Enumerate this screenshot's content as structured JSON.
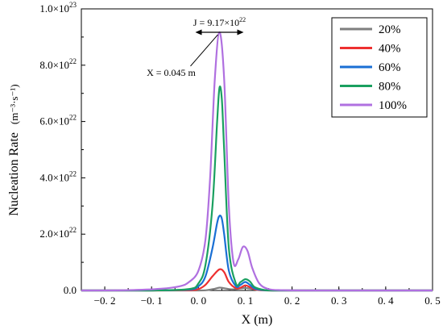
{
  "chart_data": {
    "type": "line",
    "title": "",
    "xlabel": "X (m)",
    "ylabel": "Nucleation Rate",
    "ylabel_unit": "(m⁻³·s⁻¹)",
    "xlim": [
      -0.25,
      0.5
    ],
    "ylim": [
      0,
      1e+23
    ],
    "x_ticks": [
      {
        "value": -0.2,
        "label": "−0. 2"
      },
      {
        "value": -0.1,
        "label": "−0. 1"
      },
      {
        "value": 0.0,
        "label": "0. 0"
      },
      {
        "value": 0.1,
        "label": "0. 1"
      },
      {
        "value": 0.2,
        "label": "0. 2"
      },
      {
        "value": 0.3,
        "label": "0. 3"
      },
      {
        "value": 0.4,
        "label": "0. 4"
      },
      {
        "value": 0.5,
        "label": "0. 5"
      }
    ],
    "y_ticks": [
      {
        "value": 0,
        "label": "0.0",
        "mantissa": "",
        "exponent": ""
      },
      {
        "value": 2e+22,
        "label": "2.0×10",
        "mantissa": "2.0×10",
        "exponent": "22"
      },
      {
        "value": 4e+22,
        "label": "4.0×10",
        "mantissa": "4.0×10",
        "exponent": "22"
      },
      {
        "value": 6e+22,
        "label": "6.0×10",
        "mantissa": "6.0×10",
        "exponent": "22"
      },
      {
        "value": 8e+22,
        "label": "8.0×10",
        "mantissa": "8.0×10",
        "exponent": "22"
      },
      {
        "value": 1e+23,
        "label": "1.0×10",
        "mantissa": "1.0×10",
        "exponent": "23"
      }
    ],
    "grid": false,
    "legend_position": "top-right",
    "annotations": {
      "peak_text": "J = 9.17×10",
      "peak_exp": "22",
      "peak_x_text": "X = 0.045 m",
      "peak_x": 0.045,
      "peak_y": 9.17e+22
    },
    "series": [
      {
        "name": "20%",
        "color": "#7f7f7f",
        "x": [
          -0.25,
          -0.1,
          0.0,
          0.02,
          0.035,
          0.045,
          0.055,
          0.07,
          0.085,
          0.1,
          0.115,
          0.13,
          0.15,
          0.2,
          0.5
        ],
        "y": [
          0,
          0,
          0,
          1.5e+20,
          6e+20,
          1e+21,
          8e+20,
          4e+20,
          6e+20,
          9e+20,
          5e+20,
          1e+20,
          0,
          0,
          0
        ]
      },
      {
        "name": "40%",
        "color": "#ee3030",
        "x": [
          -0.25,
          -0.1,
          -0.02,
          0.0,
          0.015,
          0.03,
          0.045,
          0.055,
          0.065,
          0.08,
          0.09,
          0.1,
          0.11,
          0.12,
          0.14,
          0.16,
          0.2,
          0.5
        ],
        "y": [
          0,
          0,
          1e+20,
          5e+20,
          2e+21,
          5e+21,
          7.5e+21,
          6.5e+21,
          3e+21,
          8e+20,
          1e+21,
          1.8e+21,
          1.2e+21,
          4e+20,
          5e+19,
          0,
          0,
          0
        ]
      },
      {
        "name": "60%",
        "color": "#1a6fd4",
        "x": [
          -0.25,
          -0.1,
          -0.02,
          0.0,
          0.015,
          0.03,
          0.04,
          0.045,
          0.05,
          0.055,
          0.065,
          0.08,
          0.09,
          0.1,
          0.11,
          0.12,
          0.14,
          0.16,
          0.2,
          0.5
        ],
        "y": [
          0,
          0,
          3e+20,
          1.5e+21,
          5e+21,
          1.5e+22,
          2.4e+22,
          2.65e+22,
          2.55e+22,
          2e+22,
          7e+21,
          1.5e+21,
          2e+21,
          3e+21,
          2e+21,
          7e+20,
          1e+20,
          0,
          0,
          0
        ]
      },
      {
        "name": "80%",
        "color": "#1aa060",
        "x": [
          -0.25,
          -0.1,
          -0.02,
          0.0,
          0.015,
          0.03,
          0.04,
          0.045,
          0.05,
          0.055,
          0.065,
          0.08,
          0.09,
          0.1,
          0.11,
          0.12,
          0.14,
          0.16,
          0.2,
          0.5
        ],
        "y": [
          0,
          0,
          5e+20,
          2.5e+21,
          9e+21,
          3e+22,
          6e+22,
          7.2e+22,
          6.8e+22,
          5e+22,
          1.5e+22,
          2.5e+21,
          3e+21,
          4e+21,
          3.2e+21,
          1.2e+21,
          2e+20,
          0,
          0,
          0
        ]
      },
      {
        "name": "100%",
        "color": "#b070e0",
        "x": [
          -0.25,
          -0.15,
          -0.08,
          -0.04,
          -0.02,
          0.0,
          0.015,
          0.025,
          0.035,
          0.045,
          0.055,
          0.065,
          0.075,
          0.085,
          0.095,
          0.105,
          0.115,
          0.13,
          0.15,
          0.18,
          0.25,
          0.5
        ],
        "y": [
          0,
          1e+20,
          6e+20,
          1.5e+21,
          3e+21,
          7e+21,
          1.8e+22,
          4e+22,
          7.5e+22,
          9.17e+22,
          7.5e+22,
          3e+22,
          1e+22,
          1.1e+22,
          1.55e+22,
          1.4e+22,
          8e+21,
          2.5e+21,
          5e+20,
          1e+20,
          0,
          0
        ]
      }
    ]
  }
}
